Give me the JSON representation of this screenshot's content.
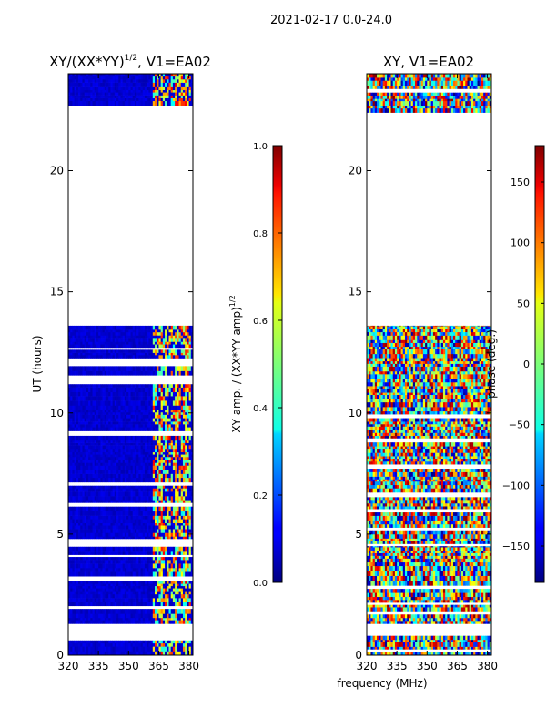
{
  "figure": {
    "suptitle": "2021-02-17 0.0-24.0",
    "shared_xlabel": "frequency (MHz)"
  },
  "chart_data": [
    {
      "type": "heatmap",
      "title": "XY/(XX*YY)",
      "title_exponent": "1/2",
      "title_suffix": ", V1=EA02",
      "xlabel": "",
      "ylabel": "UT (hours)",
      "xlim": [
        320,
        382
      ],
      "ylim": [
        0,
        24
      ],
      "xticks": [
        320,
        335,
        350,
        365,
        380
      ],
      "yticks": [
        0,
        5,
        10,
        15,
        20
      ],
      "xtick_labels": [
        "320",
        "335",
        "350",
        "365",
        "380"
      ],
      "ytick_labels": [
        "0",
        "5",
        "10",
        "15",
        "20"
      ],
      "colorbar": {
        "label": "XY amp. / (XX*YY amp)",
        "label_exponent": "1/2",
        "range": [
          0.0,
          1.0
        ],
        "ticks": [
          "0.0",
          "0.2",
          "0.4",
          "0.6",
          "0.8",
          "1.0"
        ],
        "tick_values": [
          0.0,
          0.2,
          0.4,
          0.6,
          0.8,
          1.0
        ]
      },
      "data_time_ranges_hours": [
        [
          0.0,
          0.8
        ],
        [
          1.3,
          4.5
        ],
        [
          4.6,
          13.6
        ],
        [
          22.4,
          24.0
        ]
      ]
    },
    {
      "type": "heatmap",
      "title": "XY, V1=EA02",
      "xlabel": "frequency (MHz)",
      "ylabel": "",
      "xlim": [
        320,
        382
      ],
      "ylim": [
        0,
        24
      ],
      "xticks": [
        320,
        335,
        350,
        365,
        380
      ],
      "yticks": [
        0,
        5,
        10,
        15,
        20
      ],
      "xtick_labels": [
        "320",
        "335",
        "350",
        "365",
        "380"
      ],
      "ytick_labels": [
        "0",
        "5",
        "10",
        "15",
        "20"
      ],
      "colorbar": {
        "label": "phase (deg.)",
        "range": [
          -180,
          180
        ],
        "ticks": [
          "−150",
          "−100",
          "−50",
          "0",
          "50",
          "100",
          "150"
        ],
        "tick_values": [
          -150,
          -100,
          -50,
          0,
          50,
          100,
          150
        ]
      },
      "data_time_ranges_hours": [
        [
          0.0,
          0.8
        ],
        [
          1.3,
          4.5
        ],
        [
          4.6,
          13.6
        ],
        [
          22.4,
          24.0
        ]
      ]
    }
  ]
}
